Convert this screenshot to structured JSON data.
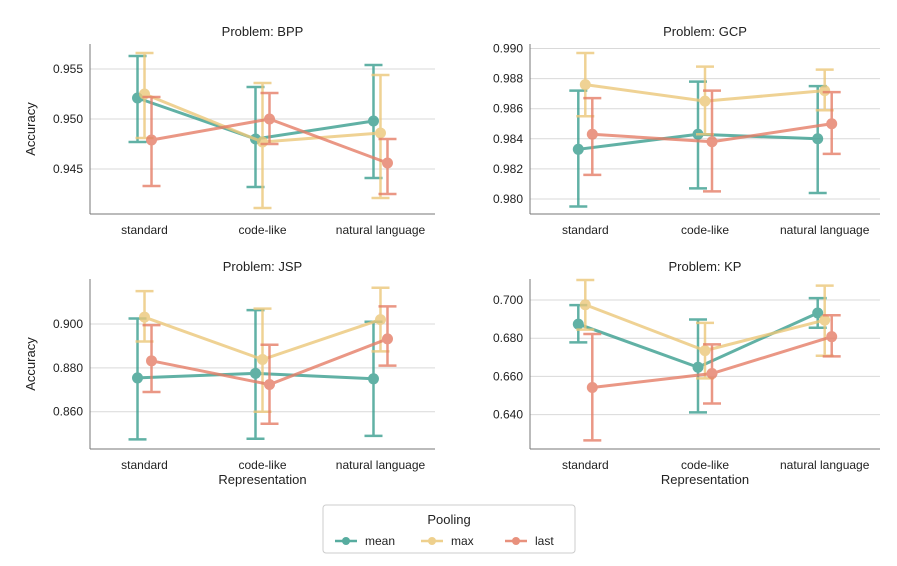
{
  "chart_data": [
    {
      "type": "line",
      "title": "Problem: BPP",
      "categories": [
        "standard",
        "code-like",
        "natural language"
      ],
      "xlabel": "",
      "ylabel": "Accuracy",
      "ylim": [
        0.9405,
        0.9575
      ],
      "yticks": [
        0.945,
        0.95,
        0.955
      ],
      "ytick_labels": [
        "0.945",
        "0.950",
        "0.955"
      ],
      "grid": true,
      "series": [
        {
          "name": "mean",
          "values": [
            0.9521,
            0.948,
            0.9498
          ],
          "err_low": [
            0.9477,
            0.9432,
            0.9441
          ],
          "err_high": [
            0.9563,
            0.9532,
            0.9554
          ]
        },
        {
          "name": "max",
          "values": [
            0.9525,
            0.9477,
            0.9486
          ],
          "err_low": [
            0.9481,
            0.9411,
            0.9421
          ],
          "err_high": [
            0.9566,
            0.9536,
            0.9544
          ]
        },
        {
          "name": "last",
          "values": [
            0.9479,
            0.95,
            0.9456
          ],
          "err_low": [
            0.9433,
            0.9475,
            0.9425
          ],
          "err_high": [
            0.9522,
            0.9526,
            0.948
          ]
        }
      ]
    },
    {
      "type": "line",
      "title": "Problem: GCP",
      "categories": [
        "standard",
        "code-like",
        "natural language"
      ],
      "xlabel": "",
      "ylabel": "",
      "ylim": [
        0.979,
        0.9903
      ],
      "yticks": [
        0.98,
        0.982,
        0.984,
        0.986,
        0.988,
        0.99
      ],
      "ytick_labels": [
        "0.980",
        "0.982",
        "0.984",
        "0.986",
        "0.988",
        "0.990"
      ],
      "grid": true,
      "series": [
        {
          "name": "mean",
          "values": [
            0.9833,
            0.9843,
            0.984
          ],
          "err_low": [
            0.9795,
            0.9807,
            0.9804
          ],
          "err_high": [
            0.9872,
            0.9878,
            0.9875
          ]
        },
        {
          "name": "max",
          "values": [
            0.9876,
            0.9865,
            0.9872
          ],
          "err_low": [
            0.9855,
            0.9843,
            0.9859
          ],
          "err_high": [
            0.9897,
            0.9888,
            0.9886
          ]
        },
        {
          "name": "last",
          "values": [
            0.9843,
            0.9838,
            0.985
          ],
          "err_low": [
            0.9816,
            0.9805,
            0.983
          ],
          "err_high": [
            0.9867,
            0.9872,
            0.9871
          ]
        }
      ]
    },
    {
      "type": "line",
      "title": "Problem: JSP",
      "categories": [
        "standard",
        "code-like",
        "natural language"
      ],
      "xlabel": "Representation",
      "ylabel": "Accuracy",
      "ylim": [
        0.843,
        0.9205
      ],
      "yticks": [
        0.86,
        0.88,
        0.9
      ],
      "ytick_labels": [
        "0.860",
        "0.880",
        "0.900"
      ],
      "grid": true,
      "series": [
        {
          "name": "mean",
          "values": [
            0.8754,
            0.8775,
            0.875
          ],
          "err_low": [
            0.8474,
            0.8477,
            0.849
          ],
          "err_high": [
            0.9025,
            0.9063,
            0.901
          ]
        },
        {
          "name": "max",
          "values": [
            0.9031,
            0.8838,
            0.902
          ],
          "err_low": [
            0.892,
            0.86,
            0.8875
          ],
          "err_high": [
            0.915,
            0.907,
            0.9165
          ]
        },
        {
          "name": "last",
          "values": [
            0.8832,
            0.8724,
            0.8932
          ],
          "err_low": [
            0.869,
            0.8545,
            0.881
          ],
          "err_high": [
            0.8995,
            0.8905,
            0.908
          ]
        }
      ]
    },
    {
      "type": "line",
      "title": "Problem: KP",
      "categories": [
        "standard",
        "code-like",
        "natural language"
      ],
      "xlabel": "Representation",
      "ylabel": "",
      "ylim": [
        0.622,
        0.711
      ],
      "yticks": [
        0.64,
        0.66,
        0.68,
        0.7
      ],
      "ytick_labels": [
        "0.640",
        "0.660",
        "0.680",
        "0.700"
      ],
      "grid": true,
      "series": [
        {
          "name": "mean",
          "values": [
            0.6874,
            0.6648,
            0.6932
          ],
          "err_low": [
            0.6778,
            0.6412,
            0.6855
          ],
          "err_high": [
            0.6973,
            0.6898,
            0.701
          ]
        },
        {
          "name": "max",
          "values": [
            0.6975,
            0.6735,
            0.6895
          ],
          "err_low": [
            0.6845,
            0.659,
            0.6708
          ],
          "err_high": [
            0.7105,
            0.688,
            0.7075
          ]
        },
        {
          "name": "last",
          "values": [
            0.6542,
            0.6615,
            0.6808
          ],
          "err_low": [
            0.6265,
            0.6458,
            0.6705
          ],
          "err_high": [
            0.6822,
            0.6768,
            0.692
          ]
        }
      ]
    }
  ],
  "legend": {
    "title": "Pooling",
    "placement": "bottom-center",
    "entries": [
      "mean",
      "max",
      "last"
    ]
  },
  "colors": {
    "mean": "#3a9e8f",
    "max": "#ecc87a",
    "last": "#e57e67",
    "grid": "#d9d9d9",
    "axis": "#777777"
  }
}
